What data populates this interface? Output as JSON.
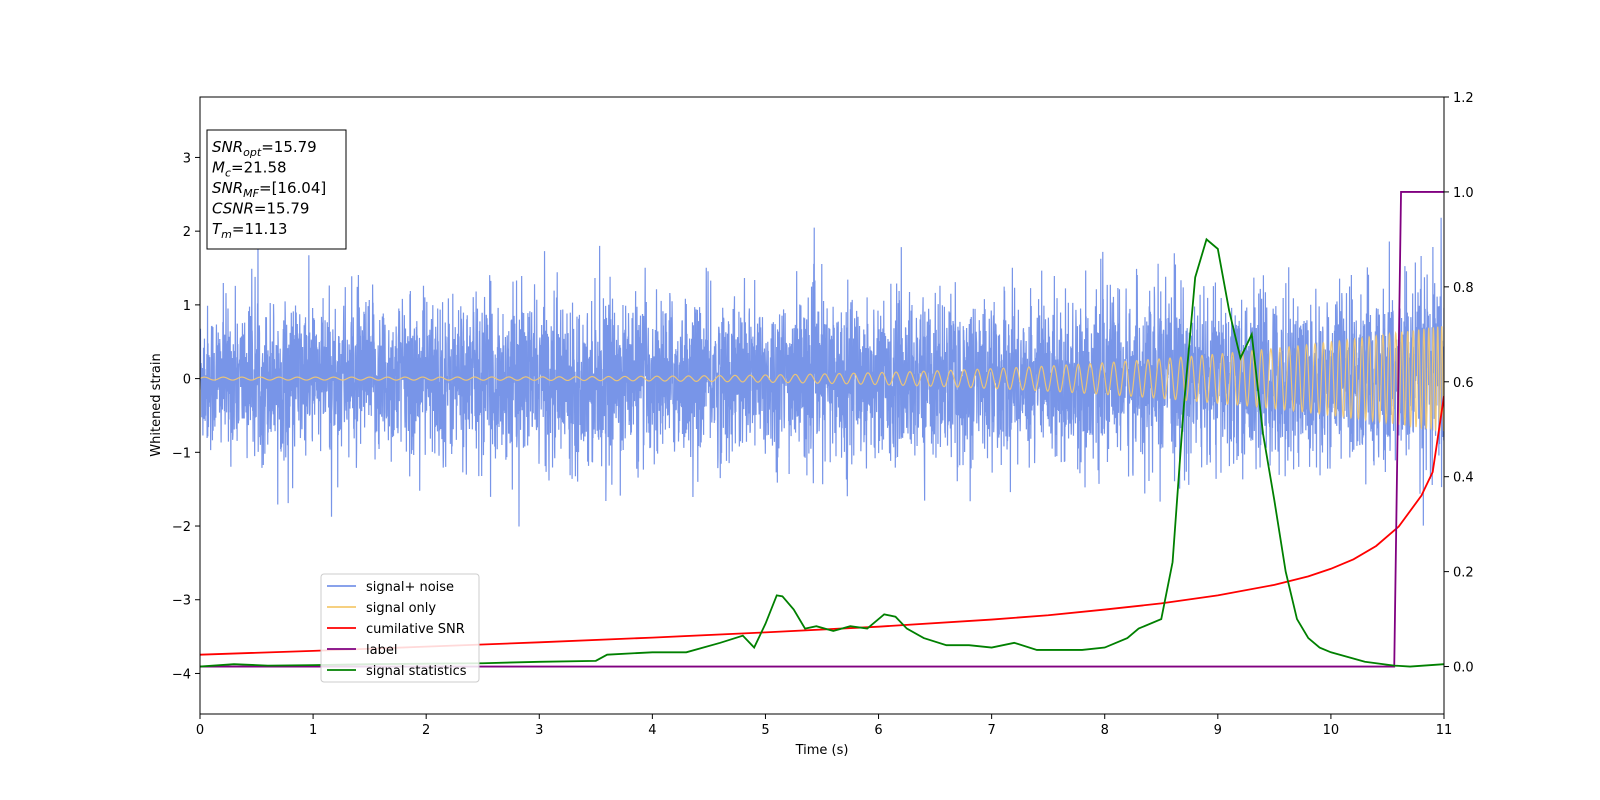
{
  "chart_data": {
    "type": "line",
    "xlabel": "Time (s)",
    "ylabel_left": "Whitened strain",
    "ylabel_right": "",
    "xlim": [
      0,
      11
    ],
    "ylim_left": [
      -4.55,
      3.82
    ],
    "ylim_right": [
      -0.1,
      1.2
    ],
    "x_ticks": [
      0,
      1,
      2,
      3,
      4,
      5,
      6,
      7,
      8,
      9,
      10,
      11
    ],
    "y_left_ticks": [
      -4,
      -3,
      -2,
      -1,
      0,
      1,
      2,
      3
    ],
    "y_right_ticks": [
      0.0,
      0.2,
      0.4,
      0.6,
      0.8,
      1.0,
      1.2
    ],
    "grid": false,
    "legend_position": "lower-left",
    "annotation": {
      "lines": [
        {
          "base": "SNR",
          "sub": "opt",
          "value": "=15.79"
        },
        {
          "base": "M",
          "sub": "c",
          "value": "=21.58"
        },
        {
          "base": "SNR",
          "sub": "MF",
          "value": "=[16.04]"
        },
        {
          "base": "CSNR",
          "sub": "",
          "value": "=15.79"
        },
        {
          "base": "T",
          "sub": "m",
          "value": "=11.13"
        }
      ]
    },
    "series": [
      {
        "name": "signal+ noise",
        "axis": "left",
        "color": "#7895e8",
        "kind": "noise",
        "note_envelope_approx": {
          "x": [
            0,
            2,
            4,
            6,
            8,
            9,
            10,
            10.6,
            11
          ],
          "amp": [
            1.8,
            2.0,
            1.95,
            2.0,
            2.0,
            2.1,
            2.1,
            2.3,
            2.6
          ]
        }
      },
      {
        "name": "signal only",
        "axis": "left",
        "color": "#f5c96e",
        "kind": "chirp",
        "chirp": {
          "x_start": 0,
          "x_end": 11,
          "amp_start": 0.02,
          "amp_end": 0.72
        }
      },
      {
        "name": "cumilative SNR",
        "axis": "right",
        "color": "#ff0000",
        "x": [
          0,
          1,
          2,
          3,
          4,
          5,
          6,
          7,
          7.5,
          8,
          8.5,
          9,
          9.5,
          9.8,
          10,
          10.2,
          10.4,
          10.6,
          10.8,
          10.9,
          11
        ],
        "y": [
          0.025,
          0.033,
          0.042,
          0.051,
          0.061,
          0.072,
          0.084,
          0.099,
          0.108,
          0.12,
          0.133,
          0.15,
          0.172,
          0.19,
          0.206,
          0.226,
          0.254,
          0.295,
          0.36,
          0.41,
          0.57
        ]
      },
      {
        "name": "label",
        "axis": "right",
        "color": "#800080",
        "x": [
          0,
          10.56,
          10.62,
          11
        ],
        "y": [
          0.0,
          0.0,
          1.0,
          1.0
        ]
      },
      {
        "name": "signal statistics",
        "axis": "right",
        "color": "#008000",
        "x": [
          0,
          0.3,
          0.6,
          1.0,
          1.5,
          2.0,
          2.5,
          3.0,
          3.5,
          3.6,
          4.0,
          4.3,
          4.6,
          4.8,
          4.9,
          5.0,
          5.1,
          5.15,
          5.25,
          5.35,
          5.45,
          5.6,
          5.75,
          5.9,
          6.05,
          6.15,
          6.25,
          6.4,
          6.6,
          6.8,
          7.0,
          7.2,
          7.4,
          7.6,
          7.8,
          8.0,
          8.2,
          8.3,
          8.5,
          8.6,
          8.7,
          8.8,
          8.9,
          9.0,
          9.1,
          9.2,
          9.3,
          9.4,
          9.5,
          9.6,
          9.7,
          9.8,
          9.9,
          10.0,
          10.3,
          10.56,
          10.7,
          11.0
        ],
        "y": [
          0.0,
          0.005,
          0.002,
          0.003,
          0.005,
          0.006,
          0.007,
          0.01,
          0.012,
          0.025,
          0.03,
          0.03,
          0.05,
          0.065,
          0.04,
          0.09,
          0.15,
          0.148,
          0.12,
          0.08,
          0.085,
          0.075,
          0.085,
          0.08,
          0.11,
          0.105,
          0.08,
          0.06,
          0.045,
          0.045,
          0.04,
          0.05,
          0.035,
          0.035,
          0.035,
          0.04,
          0.06,
          0.08,
          0.1,
          0.22,
          0.55,
          0.82,
          0.9,
          0.88,
          0.75,
          0.65,
          0.7,
          0.49,
          0.35,
          0.2,
          0.1,
          0.06,
          0.04,
          0.03,
          0.01,
          0.002,
          0.0,
          0.005
        ]
      }
    ]
  }
}
